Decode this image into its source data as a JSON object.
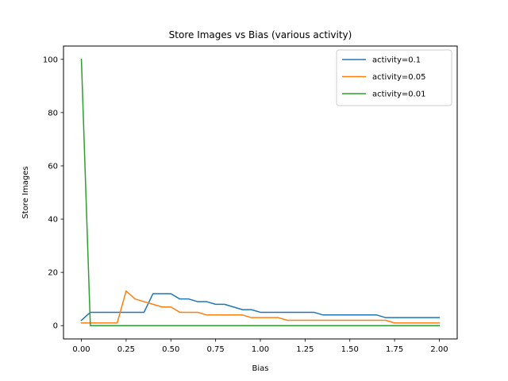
{
  "chart_data": {
    "type": "line",
    "title": "Store Images vs Bias (various activity)",
    "xlabel": "Bias",
    "ylabel": "Store Images",
    "xlim": [
      -0.1,
      2.1
    ],
    "ylim": [
      -5,
      105
    ],
    "xticks": [
      "0.00",
      "0.25",
      "0.50",
      "0.75",
      "1.00",
      "1.25",
      "1.50",
      "1.75",
      "2.00"
    ],
    "yticks": [
      "0",
      "20",
      "40",
      "60",
      "80",
      "100"
    ],
    "grid": false,
    "legend_position": "top-right",
    "x": [
      0.0,
      0.05,
      0.1,
      0.15,
      0.2,
      0.25,
      0.3,
      0.35,
      0.4,
      0.45,
      0.5,
      0.55,
      0.6,
      0.65,
      0.7,
      0.75,
      0.8,
      0.85,
      0.9,
      0.95,
      1.0,
      1.05,
      1.1,
      1.15,
      1.2,
      1.25,
      1.3,
      1.35,
      1.4,
      1.45,
      1.5,
      1.55,
      1.6,
      1.65,
      1.7,
      1.75,
      1.8,
      1.85,
      1.9,
      1.95,
      2.0
    ],
    "series": [
      {
        "name": "activity=0.1",
        "color": "#1f77b4",
        "values": [
          2,
          5,
          5,
          5,
          5,
          5,
          5,
          5,
          12,
          12,
          12,
          10,
          10,
          9,
          9,
          8,
          8,
          7,
          6,
          6,
          5,
          5,
          5,
          5,
          5,
          5,
          5,
          4,
          4,
          4,
          4,
          4,
          4,
          4,
          3,
          3,
          3,
          3,
          3,
          3,
          3
        ]
      },
      {
        "name": "activity=0.05",
        "color": "#ff7f0e",
        "values": [
          1,
          1,
          1,
          1,
          1,
          13,
          10,
          9,
          8,
          7,
          7,
          5,
          5,
          5,
          4,
          4,
          4,
          4,
          4,
          3,
          3,
          3,
          3,
          2,
          2,
          2,
          2,
          2,
          2,
          2,
          2,
          2,
          2,
          2,
          2,
          1,
          1,
          1,
          1,
          1,
          1
        ]
      },
      {
        "name": "activity=0.01",
        "color": "#2ca02c",
        "values": [
          100,
          0,
          0,
          0,
          0,
          0,
          0,
          0,
          0,
          0,
          0,
          0,
          0,
          0,
          0,
          0,
          0,
          0,
          0,
          0,
          0,
          0,
          0,
          0,
          0,
          0,
          0,
          0,
          0,
          0,
          0,
          0,
          0,
          0,
          0,
          0,
          0,
          0,
          0,
          0,
          0
        ]
      }
    ]
  }
}
